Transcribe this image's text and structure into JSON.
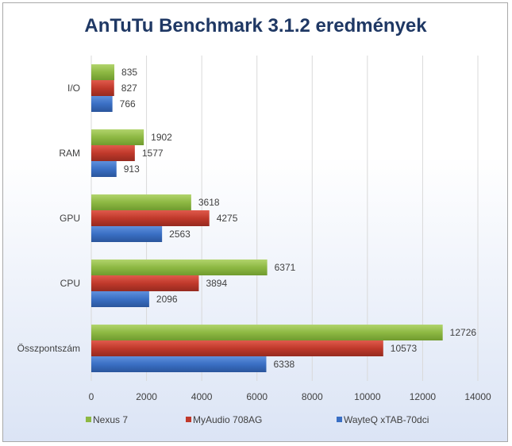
{
  "chart_data": {
    "type": "bar",
    "orientation": "horizontal",
    "title": "AnTuTu Benchmark 3.1.2 eredmények",
    "categories": [
      "I/O",
      "RAM",
      "GPU",
      "CPU",
      "Összpontszám"
    ],
    "series": [
      {
        "name": "Nexus 7",
        "color": "#8db843",
        "values": [
          835,
          1902,
          3618,
          6371,
          12726
        ]
      },
      {
        "name": "MyAudio 708AG",
        "color": "#c0392b",
        "values": [
          827,
          1577,
          4275,
          3894,
          10573
        ]
      },
      {
        "name": "WayteQ xTAB-70dci",
        "color": "#3a6fc4",
        "values": [
          766,
          913,
          2563,
          2096,
          6338
        ]
      }
    ],
    "xlim": [
      0,
      14000
    ],
    "xticks": [
      0,
      2000,
      4000,
      6000,
      8000,
      10000,
      12000,
      14000
    ],
    "grid": true,
    "legend": "bottom"
  }
}
